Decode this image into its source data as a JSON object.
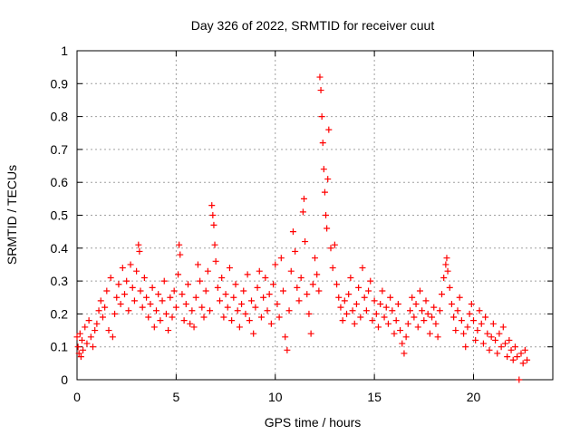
{
  "chart_data": {
    "type": "scatter",
    "title": "Day 326 of 2022, SRMTID for receiver cuut",
    "xlabel": "GPS time / hours",
    "ylabel": "SRMTID / TECUs",
    "xlim": [
      0,
      24
    ],
    "ylim": [
      0,
      1
    ],
    "xticks": [
      0,
      5,
      10,
      15,
      20
    ],
    "yticks": [
      0,
      0.1,
      0.2,
      0.3,
      0.4,
      0.5,
      0.6,
      0.7,
      0.8,
      0.9,
      1
    ],
    "ytick_labels": [
      "0",
      "0.1",
      "0.2",
      "0.3",
      "0.4",
      "0.5",
      "0.6",
      "0.7",
      "0.8",
      "0.9",
      "1"
    ],
    "grid": true,
    "marker": "plus",
    "series": [
      {
        "name": "SRMTID",
        "color": "#ff0000",
        "points": [
          [
            0.0,
            0.13
          ],
          [
            0.05,
            0.1
          ],
          [
            0.1,
            0.08
          ],
          [
            0.15,
            0.14
          ],
          [
            0.2,
            0.07
          ],
          [
            0.25,
            0.12
          ],
          [
            0.3,
            0.09
          ],
          [
            0.4,
            0.16
          ],
          [
            0.5,
            0.11
          ],
          [
            0.6,
            0.18
          ],
          [
            0.7,
            0.13
          ],
          [
            0.8,
            0.1
          ],
          [
            0.9,
            0.15
          ],
          [
            1.0,
            0.17
          ],
          [
            1.1,
            0.21
          ],
          [
            1.2,
            0.24
          ],
          [
            1.3,
            0.19
          ],
          [
            1.4,
            0.22
          ],
          [
            1.5,
            0.27
          ],
          [
            1.6,
            0.15
          ],
          [
            1.7,
            0.31
          ],
          [
            1.8,
            0.13
          ],
          [
            1.9,
            0.2
          ],
          [
            2.0,
            0.25
          ],
          [
            2.1,
            0.29
          ],
          [
            2.2,
            0.23
          ],
          [
            2.3,
            0.34
          ],
          [
            2.4,
            0.26
          ],
          [
            2.5,
            0.3
          ],
          [
            2.6,
            0.21
          ],
          [
            2.7,
            0.35
          ],
          [
            2.8,
            0.28
          ],
          [
            2.9,
            0.24
          ],
          [
            3.0,
            0.33
          ],
          [
            3.1,
            0.41
          ],
          [
            3.15,
            0.39
          ],
          [
            3.2,
            0.27
          ],
          [
            3.3,
            0.22
          ],
          [
            3.4,
            0.31
          ],
          [
            3.5,
            0.25
          ],
          [
            3.6,
            0.19
          ],
          [
            3.7,
            0.23
          ],
          [
            3.8,
            0.28
          ],
          [
            3.9,
            0.16
          ],
          [
            4.0,
            0.21
          ],
          [
            4.1,
            0.26
          ],
          [
            4.2,
            0.18
          ],
          [
            4.3,
            0.24
          ],
          [
            4.4,
            0.3
          ],
          [
            4.5,
            0.2
          ],
          [
            4.6,
            0.15
          ],
          [
            4.7,
            0.25
          ],
          [
            4.8,
            0.19
          ],
          [
            4.9,
            0.27
          ],
          [
            5.0,
            0.22
          ],
          [
            5.1,
            0.32
          ],
          [
            5.15,
            0.41
          ],
          [
            5.2,
            0.38
          ],
          [
            5.3,
            0.26
          ],
          [
            5.4,
            0.18
          ],
          [
            5.5,
            0.23
          ],
          [
            5.6,
            0.29
          ],
          [
            5.7,
            0.17
          ],
          [
            5.8,
            0.21
          ],
          [
            5.9,
            0.16
          ],
          [
            6.0,
            0.25
          ],
          [
            6.1,
            0.35
          ],
          [
            6.2,
            0.3
          ],
          [
            6.3,
            0.22
          ],
          [
            6.4,
            0.19
          ],
          [
            6.5,
            0.27
          ],
          [
            6.6,
            0.33
          ],
          [
            6.7,
            0.21
          ],
          [
            6.8,
            0.53
          ],
          [
            6.85,
            0.5
          ],
          [
            6.9,
            0.47
          ],
          [
            6.95,
            0.41
          ],
          [
            7.0,
            0.36
          ],
          [
            7.1,
            0.28
          ],
          [
            7.2,
            0.24
          ],
          [
            7.3,
            0.31
          ],
          [
            7.4,
            0.19
          ],
          [
            7.5,
            0.26
          ],
          [
            7.6,
            0.22
          ],
          [
            7.7,
            0.34
          ],
          [
            7.8,
            0.18
          ],
          [
            7.9,
            0.25
          ],
          [
            8.0,
            0.29
          ],
          [
            8.1,
            0.21
          ],
          [
            8.2,
            0.16
          ],
          [
            8.3,
            0.23
          ],
          [
            8.4,
            0.27
          ],
          [
            8.5,
            0.2
          ],
          [
            8.6,
            0.32
          ],
          [
            8.7,
            0.18
          ],
          [
            8.8,
            0.24
          ],
          [
            8.9,
            0.14
          ],
          [
            9.0,
            0.22
          ],
          [
            9.1,
            0.28
          ],
          [
            9.2,
            0.33
          ],
          [
            9.3,
            0.19
          ],
          [
            9.4,
            0.25
          ],
          [
            9.5,
            0.31
          ],
          [
            9.6,
            0.21
          ],
          [
            9.7,
            0.26
          ],
          [
            9.8,
            0.17
          ],
          [
            9.9,
            0.29
          ],
          [
            10.0,
            0.35
          ],
          [
            10.1,
            0.23
          ],
          [
            10.2,
            0.19
          ],
          [
            10.3,
            0.37
          ],
          [
            10.4,
            0.27
          ],
          [
            10.5,
            0.13
          ],
          [
            10.6,
            0.09
          ],
          [
            10.7,
            0.21
          ],
          [
            10.8,
            0.33
          ],
          [
            10.9,
            0.45
          ],
          [
            11.0,
            0.39
          ],
          [
            11.1,
            0.28
          ],
          [
            11.2,
            0.24
          ],
          [
            11.3,
            0.31
          ],
          [
            11.4,
            0.51
          ],
          [
            11.45,
            0.55
          ],
          [
            11.5,
            0.42
          ],
          [
            11.6,
            0.26
          ],
          [
            11.7,
            0.2
          ],
          [
            11.8,
            0.14
          ],
          [
            11.9,
            0.29
          ],
          [
            12.0,
            0.37
          ],
          [
            12.1,
            0.32
          ],
          [
            12.2,
            0.27
          ],
          [
            12.25,
            0.92
          ],
          [
            12.3,
            0.88
          ],
          [
            12.35,
            0.8
          ],
          [
            12.4,
            0.72
          ],
          [
            12.45,
            0.64
          ],
          [
            12.5,
            0.57
          ],
          [
            12.55,
            0.5
          ],
          [
            12.6,
            0.46
          ],
          [
            12.65,
            0.61
          ],
          [
            12.7,
            0.76
          ],
          [
            12.8,
            0.4
          ],
          [
            12.9,
            0.34
          ],
          [
            13.0,
            0.41
          ],
          [
            13.1,
            0.29
          ],
          [
            13.2,
            0.25
          ],
          [
            13.3,
            0.22
          ],
          [
            13.4,
            0.18
          ],
          [
            13.5,
            0.24
          ],
          [
            13.6,
            0.2
          ],
          [
            13.7,
            0.26
          ],
          [
            13.8,
            0.31
          ],
          [
            13.9,
            0.21
          ],
          [
            14.0,
            0.17
          ],
          [
            14.1,
            0.23
          ],
          [
            14.2,
            0.28
          ],
          [
            14.3,
            0.19
          ],
          [
            14.4,
            0.34
          ],
          [
            14.5,
            0.25
          ],
          [
            14.6,
            0.21
          ],
          [
            14.7,
            0.27
          ],
          [
            14.8,
            0.3
          ],
          [
            14.9,
            0.18
          ],
          [
            15.0,
            0.24
          ],
          [
            15.1,
            0.2
          ],
          [
            15.2,
            0.16
          ],
          [
            15.3,
            0.23
          ],
          [
            15.4,
            0.27
          ],
          [
            15.5,
            0.19
          ],
          [
            15.6,
            0.22
          ],
          [
            15.7,
            0.17
          ],
          [
            15.8,
            0.25
          ],
          [
            15.9,
            0.21
          ],
          [
            16.0,
            0.14
          ],
          [
            16.1,
            0.18
          ],
          [
            16.2,
            0.23
          ],
          [
            16.3,
            0.15
          ],
          [
            16.4,
            0.11
          ],
          [
            16.5,
            0.08
          ],
          [
            16.6,
            0.13
          ],
          [
            16.7,
            0.17
          ],
          [
            16.8,
            0.21
          ],
          [
            16.9,
            0.25
          ],
          [
            17.0,
            0.19
          ],
          [
            17.1,
            0.23
          ],
          [
            17.2,
            0.16
          ],
          [
            17.3,
            0.27
          ],
          [
            17.4,
            0.21
          ],
          [
            17.5,
            0.18
          ],
          [
            17.6,
            0.24
          ],
          [
            17.7,
            0.2
          ],
          [
            17.8,
            0.14
          ],
          [
            17.9,
            0.19
          ],
          [
            18.0,
            0.22
          ],
          [
            18.1,
            0.17
          ],
          [
            18.2,
            0.13
          ],
          [
            18.3,
            0.21
          ],
          [
            18.4,
            0.26
          ],
          [
            18.5,
            0.31
          ],
          [
            18.6,
            0.35
          ],
          [
            18.65,
            0.37
          ],
          [
            18.7,
            0.33
          ],
          [
            18.8,
            0.28
          ],
          [
            18.9,
            0.23
          ],
          [
            19.0,
            0.19
          ],
          [
            19.1,
            0.15
          ],
          [
            19.2,
            0.21
          ],
          [
            19.3,
            0.25
          ],
          [
            19.4,
            0.18
          ],
          [
            19.5,
            0.14
          ],
          [
            19.6,
            0.1
          ],
          [
            19.7,
            0.16
          ],
          [
            19.8,
            0.2
          ],
          [
            19.9,
            0.23
          ],
          [
            20.0,
            0.18
          ],
          [
            20.1,
            0.12
          ],
          [
            20.2,
            0.15
          ],
          [
            20.3,
            0.21
          ],
          [
            20.4,
            0.17
          ],
          [
            20.5,
            0.11
          ],
          [
            20.6,
            0.19
          ],
          [
            20.7,
            0.14
          ],
          [
            20.8,
            0.09
          ],
          [
            20.9,
            0.13
          ],
          [
            21.0,
            0.17
          ],
          [
            21.1,
            0.12
          ],
          [
            21.2,
            0.08
          ],
          [
            21.3,
            0.14
          ],
          [
            21.4,
            0.1
          ],
          [
            21.5,
            0.16
          ],
          [
            21.6,
            0.11
          ],
          [
            21.7,
            0.07
          ],
          [
            21.8,
            0.12
          ],
          [
            21.9,
            0.09
          ],
          [
            22.0,
            0.06
          ],
          [
            22.1,
            0.1
          ],
          [
            22.2,
            0.07
          ],
          [
            22.3,
            0.0
          ],
          [
            22.4,
            0.08
          ],
          [
            22.5,
            0.05
          ],
          [
            22.6,
            0.09
          ],
          [
            22.7,
            0.06
          ]
        ]
      }
    ]
  }
}
